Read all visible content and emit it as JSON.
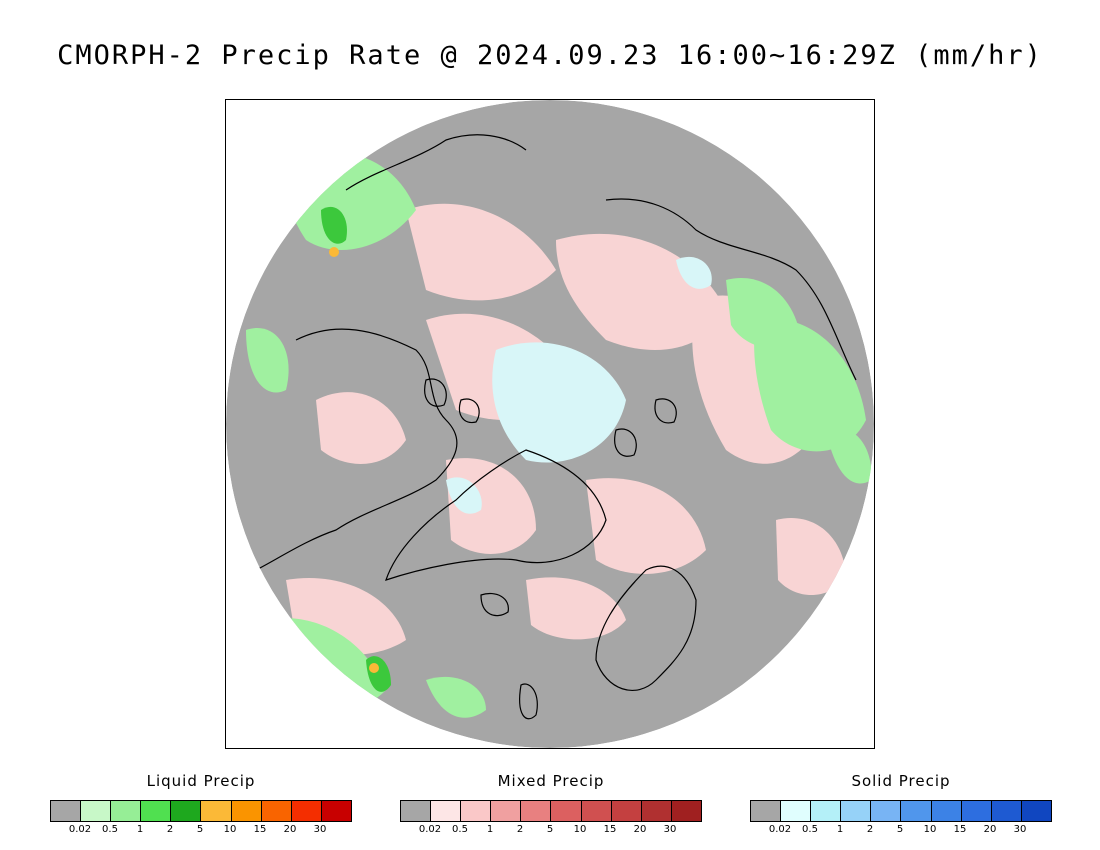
{
  "title": "CMORPH-2 Precip Rate @ 2024.09.23 16:00~16:29Z (mm/hr)",
  "map": {
    "colors": {
      "background": "#a6a6a6",
      "liquid_light": "#a0f0a0",
      "liquid_mid": "#7de87d",
      "liquid_heavy": "#3cc83c",
      "mixed_light": "#f8d4d4",
      "solid_light": "#d8f6f8",
      "coast": "#000000"
    }
  },
  "legends": [
    {
      "title": "Liquid Precip",
      "colors": [
        "#a6a6a6",
        "#c8f8c8",
        "#96ee96",
        "#50e050",
        "#1ea81e",
        "#fbb937",
        "#fa9400",
        "#f96400",
        "#f42e00",
        "#c80000"
      ],
      "ticks": [
        "0.02",
        "0.5",
        "1",
        "2",
        "5",
        "10",
        "15",
        "20",
        "30"
      ]
    },
    {
      "title": "Mixed Precip",
      "colors": [
        "#a6a6a6",
        "#fde6e6",
        "#fac8c8",
        "#f0a0a0",
        "#e88080",
        "#dc6060",
        "#d05050",
        "#c44040",
        "#b03030",
        "#a02020"
      ],
      "ticks": [
        "0.02",
        "0.5",
        "1",
        "2",
        "5",
        "10",
        "15",
        "20",
        "30"
      ]
    },
    {
      "title": "Solid Precip",
      "colors": [
        "#a6a6a6",
        "#e0fefe",
        "#b4f0f8",
        "#96d2f8",
        "#78b4f4",
        "#5096ec",
        "#3c82e6",
        "#2d6ee0",
        "#1e5ad2",
        "#1046c0"
      ],
      "ticks": [
        "0.02",
        "0.5",
        "1",
        "2",
        "5",
        "10",
        "15",
        "20",
        "30"
      ]
    }
  ]
}
